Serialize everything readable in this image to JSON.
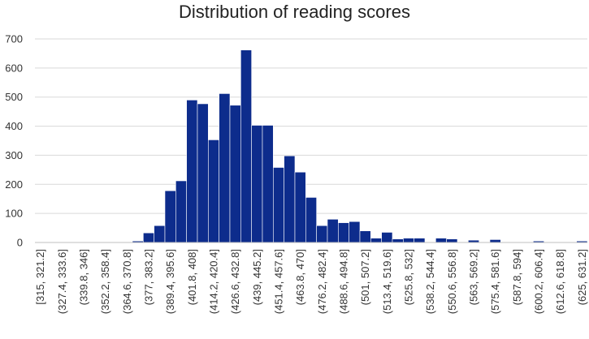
{
  "chart_data": {
    "type": "bar",
    "title": "Distribution of reading scores",
    "xlabel": "",
    "ylabel": "",
    "ylim": [
      0,
      700
    ],
    "yticks": [
      0,
      100,
      200,
      300,
      400,
      500,
      600,
      700
    ],
    "grid": true,
    "legend": "none",
    "bar_color": "#0D2C8C",
    "categories": [
      "[315, 321.2]",
      "(321.2, 327.4]",
      "(327.4, 333.6]",
      "(333.6, 339.8]",
      "(339.8, 346]",
      "(346, 352.2]",
      "(352.2, 358.4]",
      "(358.4, 364.6]",
      "(364.6, 370.8]",
      "(370.8, 377]",
      "(377, 383.2]",
      "(383.2, 389.4]",
      "(389.4, 395.6]",
      "(395.6, 401.8]",
      "(401.8, 408]",
      "(408, 414.2]",
      "(414.2, 420.4]",
      "(420.4, 426.6]",
      "(426.6, 432.8]",
      "(432.8, 439]",
      "(439, 445.2]",
      "(445.2, 451.4]",
      "(451.4, 457.6]",
      "(457.6, 463.8]",
      "(463.8, 470]",
      "(470, 476.2]",
      "(476.2, 482.4]",
      "(482.4, 488.6]",
      "(488.6, 494.8]",
      "(494.8, 501]",
      "(501, 507.2]",
      "(507.2, 513.4]",
      "(513.4, 519.6]",
      "(519.6, 525.8]",
      "(525.8, 532]",
      "(532, 538.2]",
      "(538.2, 544.4]",
      "(544.4, 550.6]",
      "(550.6, 556.8]",
      "(556.8, 563]",
      "(563, 569.2]",
      "(569.2, 575.4]",
      "(575.4, 581.6]",
      "(581.6, 587.8]",
      "(587.8, 594]",
      "(594, 600.2]",
      "(600.2, 606.4]",
      "(606.4, 612.6]",
      "(612.6, 618.8]",
      "(618.8, 625]",
      "(625, 631.2]"
    ],
    "shown_label_every": 2,
    "values": [
      0,
      0,
      0,
      0,
      0,
      0,
      0,
      0,
      0,
      5,
      33,
      58,
      178,
      212,
      490,
      477,
      353,
      512,
      472,
      662,
      403,
      403,
      258,
      298,
      242,
      155,
      58,
      80,
      68,
      72,
      40,
      15,
      35,
      12,
      15,
      15,
      0,
      15,
      12,
      0,
      8,
      0,
      10,
      0,
      0,
      0,
      5,
      0,
      0,
      0,
      5
    ]
  }
}
